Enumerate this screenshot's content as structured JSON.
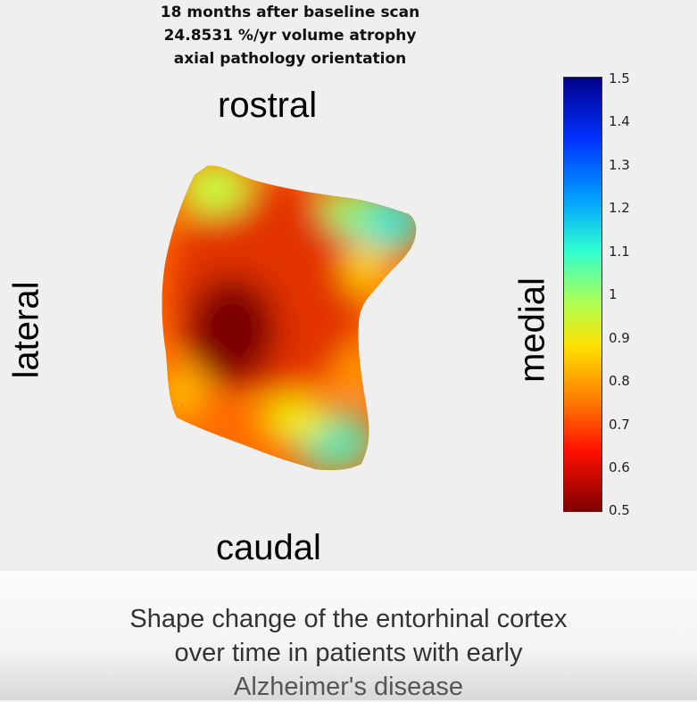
{
  "figure": {
    "title_lines": [
      "18 months after baseline scan",
      "24.8531 %/yr volume atrophy",
      "axial pathology orientation"
    ],
    "orientation": {
      "top": "rostral",
      "bottom": "caudal",
      "left": "lateral",
      "right": "medial"
    },
    "colorbar": {
      "ticks": [
        "1.5",
        "1.4",
        "1.3",
        "1.2",
        "1.1",
        "1",
        "0.9",
        "0.8",
        "0.7",
        "0.6",
        "0.5"
      ],
      "colormap": "jet",
      "colors": [
        "#0000a0",
        "#0040ff",
        "#00c8ff",
        "#60ffa0",
        "#ffe000",
        "#ff6000",
        "#c00000",
        "#800000"
      ]
    }
  },
  "caption": {
    "lines": [
      "Shape change of the entorhinal cortex",
      "over time in patients with early",
      "Alzheimer's disease"
    ]
  }
}
